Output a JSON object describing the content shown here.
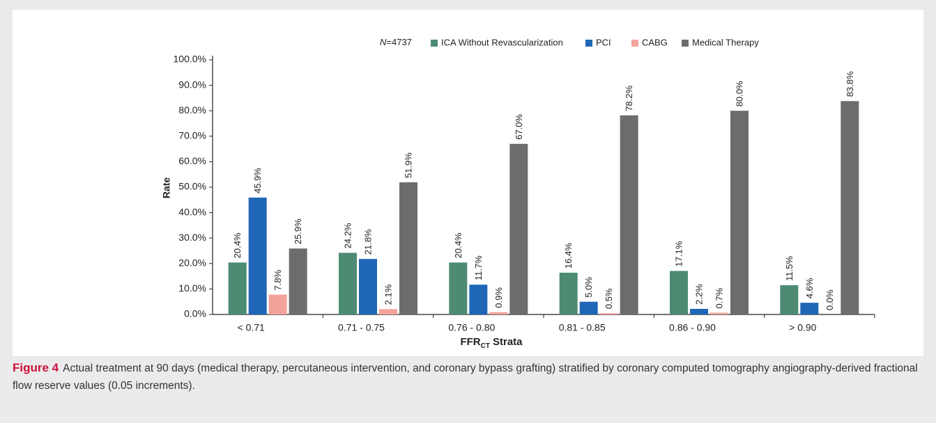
{
  "chart_data": {
    "type": "bar",
    "note": "N=4737",
    "ylabel": "Rate",
    "xlabel_parts": [
      "FFR",
      "CT",
      "Strata"
    ],
    "categories": [
      "< 0.71",
      "0.71 - 0.75",
      "0.76 - 0.80",
      "0.81 - 0.85",
      "0.86 - 0.90",
      "> 0.90"
    ],
    "series": [
      {
        "name": "ICA Without Revascularization",
        "color": "#4d8b73",
        "values": [
          20.4,
          24.2,
          20.4,
          16.4,
          17.1,
          11.5
        ],
        "value_labels": [
          "20.4%",
          "24.2%",
          "20.4%",
          "16.4%",
          "17.1%",
          "11.5%"
        ]
      },
      {
        "name": "PCI",
        "color": "#1f67b6",
        "values": [
          45.9,
          21.8,
          11.7,
          5.0,
          2.2,
          4.6
        ],
        "value_labels": [
          "45.9%",
          "21.8%",
          "11.7%",
          "5.0%",
          "2.2%",
          "4.6%"
        ]
      },
      {
        "name": "CABG",
        "color": "#f4a39a",
        "values": [
          7.8,
          2.1,
          0.9,
          0.5,
          0.7,
          0.0
        ],
        "value_labels": [
          "7.8%",
          "2.1%",
          "0.9%",
          "0.5%",
          "0.7%",
          "0.0%"
        ]
      },
      {
        "name": "Medical Therapy",
        "color": "#6b6c6e",
        "values": [
          25.9,
          51.9,
          67.0,
          78.2,
          80.0,
          83.8
        ],
        "value_labels": [
          "25.9%",
          "51.9%",
          "67.0%",
          "78.2%",
          "80.0%",
          "83.8%"
        ]
      }
    ],
    "ylim": [
      0,
      100
    ],
    "yticks": [
      {
        "value": 0,
        "label": "0.0%"
      },
      {
        "value": 10,
        "label": "10.0%"
      },
      {
        "value": 20,
        "label": "20.0%"
      },
      {
        "value": 30,
        "label": "30.0%"
      },
      {
        "value": 40,
        "label": "40.0%"
      },
      {
        "value": 50,
        "label": "50.0%"
      },
      {
        "value": 60,
        "label": "60.0%"
      },
      {
        "value": 70,
        "label": "70.0%"
      },
      {
        "value": 80,
        "label": "80.0%"
      },
      {
        "value": 90,
        "label": "90.0%"
      },
      {
        "value": 100,
        "label": "100.0%"
      }
    ],
    "grid": false,
    "legend": "top"
  },
  "caption": {
    "label": "Figure 4",
    "text": "Actual treatment at 90 days (medical therapy, percutaneous intervention, and coronary bypass grafting) stratified by coronary computed tomography angiography-derived fractional flow reserve values (0.05 increments)."
  }
}
